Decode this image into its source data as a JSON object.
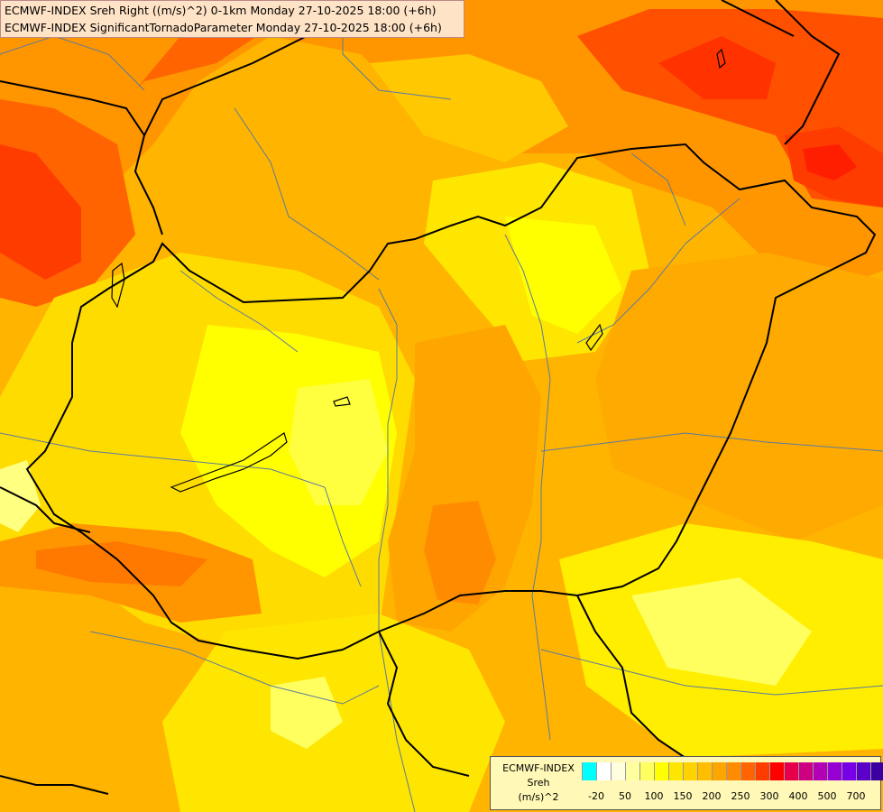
{
  "header": {
    "line1": "ECMWF-INDEX Sreh Right ((m/s)^2) 0-1km Monday 27-10-2025 18:00 (+6h)",
    "line2": "ECMWF-INDEX SignificantTornadoParameter Monday 27-10-2025 18:00 (+6h)"
  },
  "legend": {
    "title1": "ECMWF-INDEX",
    "title2": "Sreh",
    "title3": "(m/s)^2",
    "colors": [
      "#00ffff",
      "#ffffff",
      "#ffffe0",
      "#ffffa0",
      "#ffff60",
      "#ffff00",
      "#ffe600",
      "#ffd200",
      "#ffbe00",
      "#ffa500",
      "#ff8c00",
      "#ff6400",
      "#ff3c00",
      "#ff0000",
      "#e6004b",
      "#cc0080",
      "#b400b4",
      "#9600d2",
      "#7800e6",
      "#5a00c8",
      "#3c00a0",
      "#1e0078"
    ],
    "ticks": [
      "-20",
      "50",
      "100",
      "150",
      "200",
      "250",
      "300",
      "400",
      "500",
      "700"
    ]
  },
  "colors": {
    "yellow": "#ffff00",
    "light_yellow": "#ffff80",
    "gold": "#ffd200",
    "orange": "#ffa500",
    "dark_orange": "#ff7800",
    "red": "#ff3c00",
    "border": "#000000",
    "river": "#5a7aa0"
  }
}
